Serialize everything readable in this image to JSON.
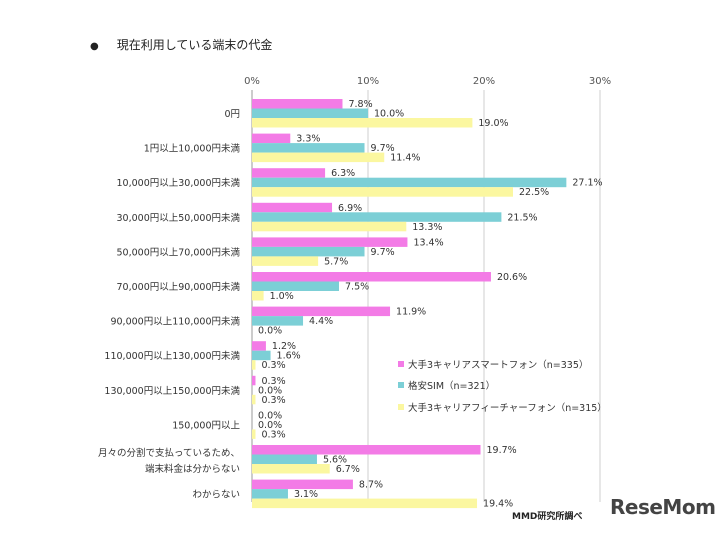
{
  "title": "現在利用している端末の代金",
  "source": "MMD研究所調べ",
  "logo": "ReseMom",
  "colors": {
    "smartphone": "#f37be6",
    "sim": "#7ccfd6",
    "feature": "#fbf7a0",
    "grid": "#cfcfcf"
  },
  "chart_data": {
    "type": "bar",
    "orientation": "horizontal",
    "xlim": [
      0,
      30
    ],
    "xticks": [
      "0%",
      "10%",
      "20%",
      "30%"
    ],
    "categories": [
      "0円",
      "1円以上10,000円未満",
      "10,000円以上30,000円未満",
      "30,000円以上50,000円未満",
      "50,000円以上70,000円未満",
      "70,000円以上90,000円未満",
      "90,000円以上110,000円未満",
      "110,000円以上130,000円未満",
      "130,000円以上150,000円未満",
      "150,000円以上",
      [
        "月々の分割で支払っているため、",
        "端末料金は分からない"
      ],
      "わからない"
    ],
    "series": [
      {
        "name": "大手3キャリアスマートフォン（n=335）",
        "color": "#f37be6",
        "values": [
          7.8,
          3.3,
          6.3,
          6.9,
          13.4,
          20.6,
          11.9,
          1.2,
          0.3,
          0.0,
          19.7,
          8.7
        ],
        "labels": [
          "7.8%",
          "3.3%",
          "6.3%",
          "6.9%",
          "13.4%",
          "20.6%",
          "11.9%",
          "1.2%",
          "0.3%",
          "0.0%",
          "19.7%",
          "8.7%"
        ]
      },
      {
        "name": "格安SIM（n=321）",
        "color": "#7ccfd6",
        "values": [
          10.0,
          9.7,
          27.1,
          21.5,
          9.7,
          7.5,
          4.4,
          1.6,
          0.0,
          0.0,
          5.6,
          3.1
        ],
        "labels": [
          "10.0%",
          "9.7%",
          "27.1%",
          "21.5%",
          "9.7%",
          "7.5%",
          "4.4%",
          "1.6%",
          "0.0%",
          "0.0%",
          "5.6%",
          "3.1%"
        ]
      },
      {
        "name": "大手3キャリアフィーチャーフォン（n=315）",
        "color": "#fbf7a0",
        "values": [
          19.0,
          11.4,
          22.5,
          13.3,
          5.7,
          1.0,
          0.0,
          0.3,
          0.3,
          0.3,
          6.7,
          19.4
        ],
        "labels": [
          "19.0%",
          "11.4%",
          "22.5%",
          "13.3%",
          "5.7%",
          "1.0%",
          "0.0%",
          "0.3%",
          "0.3%",
          "0.3%",
          "6.7%",
          "19.4%"
        ]
      }
    ],
    "legend": "inside-right"
  }
}
